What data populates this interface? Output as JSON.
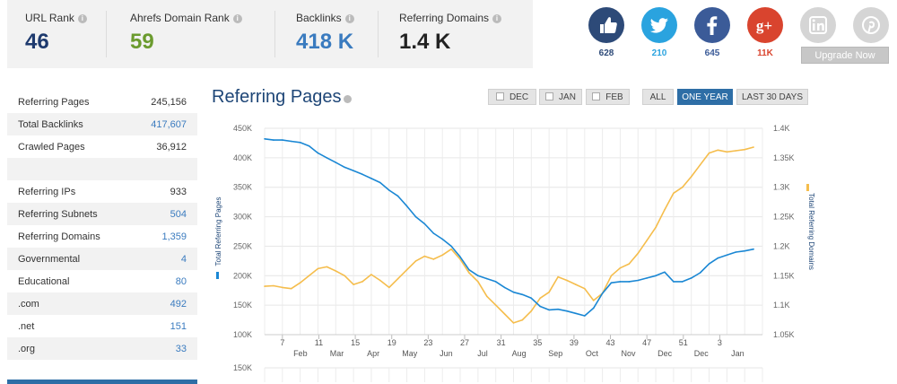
{
  "metrics": [
    {
      "label": "URL Rank",
      "value": "46",
      "color": "#1e3a6e"
    },
    {
      "label": "Ahrefs Domain Rank",
      "value": "59",
      "color": "#6b9b2e"
    },
    {
      "label": "Backlinks",
      "value": "418 K",
      "color": "#3a7bbf"
    },
    {
      "label": "Referring Domains",
      "value": "1.4 K",
      "color": "#222222"
    }
  ],
  "social": [
    {
      "name": "thumbs-up-icon",
      "count": "628",
      "bg": "#2d4a78",
      "count_color": "#2d4a78"
    },
    {
      "name": "twitter-icon",
      "count": "210",
      "bg": "#2aa3df",
      "count_color": "#2aa3df"
    },
    {
      "name": "facebook-icon",
      "count": "645",
      "bg": "#3b5b98",
      "count_color": "#3b5b98"
    },
    {
      "name": "google-plus-icon",
      "count": "11K",
      "bg": "#d9442e",
      "count_color": "#d9442e"
    },
    {
      "name": "linkedin-icon",
      "count": "",
      "bg": "#d5d5d5",
      "count_color": "#999999"
    },
    {
      "name": "pinterest-icon",
      "count": "",
      "bg": "#d5d5d5",
      "count_color": "#999999"
    }
  ],
  "upgrade_label": "Upgrade Now",
  "stats": {
    "group1": [
      {
        "label": "Referring Pages",
        "value": "245,156",
        "link": false
      },
      {
        "label": "Total Backlinks",
        "value": "417,607",
        "link": true
      },
      {
        "label": "Crawled Pages",
        "value": "36,912",
        "link": false
      }
    ],
    "group2": [
      {
        "label": "Referring IPs",
        "value": "933",
        "link": false
      },
      {
        "label": "Referring Subnets",
        "value": "504",
        "link": true
      },
      {
        "label": "Referring Domains",
        "value": "1,359",
        "link": true
      },
      {
        "label": "Governmental",
        "value": "4",
        "link": true
      },
      {
        "label": "Educational",
        "value": "80",
        "link": true
      },
      {
        "label": ".com",
        "value": "492",
        "link": true
      },
      {
        "label": ".net",
        "value": "151",
        "link": true
      },
      {
        "label": ".org",
        "value": "33",
        "link": true
      }
    ]
  },
  "chart_title": "Referring Pages",
  "range_buttons": [
    {
      "label": "DEC",
      "checkbox": true,
      "active": false
    },
    {
      "label": "JAN",
      "checkbox": true,
      "active": false
    },
    {
      "label": "FEB",
      "checkbox": true,
      "active": false
    },
    {
      "label": "ALL",
      "checkbox": false,
      "active": false
    },
    {
      "label": "ONE YEAR",
      "checkbox": false,
      "active": true
    },
    {
      "label": "LAST 30 DAYS",
      "checkbox": false,
      "active": false
    }
  ],
  "chart_data": {
    "type": "line",
    "title": "Referring Pages",
    "ylabel": "Total Referring Pages",
    "y2label": "Total Referring Domains",
    "ylim": [
      100000,
      450000
    ],
    "y2lim": [
      1050,
      1400
    ],
    "y_ticks": [
      "450K",
      "400K",
      "350K",
      "300K",
      "250K",
      "200K",
      "150K",
      "100K"
    ],
    "y2_ticks": [
      "1.4K",
      "1.35K",
      "1.3K",
      "1.25K",
      "1.2K",
      "1.15K",
      "1.1K",
      "1.05K"
    ],
    "x_day_ticks": [
      "7",
      "11",
      "15",
      "19",
      "23",
      "27",
      "31",
      "35",
      "39",
      "43",
      "47",
      "51",
      "3"
    ],
    "x_month_ticks": [
      "Feb",
      "Mar",
      "Apr",
      "May",
      "Jun",
      "Jul",
      "Aug",
      "Sep",
      "Oct",
      "Nov",
      "Dec",
      "Dec",
      "Jan"
    ],
    "x_range": [
      0,
      56
    ],
    "navigator_tick": "150K",
    "grid": true,
    "legend": "axis-labels",
    "series": [
      {
        "name": "Total Referring Pages",
        "axis": "left",
        "color": "#1a87d4",
        "x": [
          0,
          1,
          2,
          3,
          4,
          5,
          6,
          7,
          8,
          9,
          10,
          11,
          12,
          13,
          14,
          15,
          16,
          17,
          18,
          19,
          20,
          21,
          22,
          23,
          24,
          25,
          26,
          27,
          28,
          29,
          30,
          31,
          32,
          33,
          34,
          35,
          36,
          37,
          38,
          39,
          40,
          41,
          42,
          43,
          44,
          45,
          46,
          47,
          48,
          49,
          50,
          51,
          52,
          53,
          54,
          55
        ],
        "values": [
          432000,
          430000,
          430000,
          428000,
          426000,
          420000,
          408000,
          400000,
          392000,
          384000,
          378000,
          372000,
          365000,
          358000,
          345000,
          335000,
          318000,
          300000,
          288000,
          272000,
          262000,
          250000,
          232000,
          210000,
          200000,
          195000,
          190000,
          180000,
          172000,
          168000,
          162000,
          148000,
          142000,
          143000,
          140000,
          136000,
          132000,
          145000,
          170000,
          188000,
          190000,
          190000,
          192000,
          196000,
          200000,
          206000,
          190000,
          190000,
          196000,
          205000,
          220000,
          230000,
          235000,
          240000,
          242000,
          245000
        ]
      },
      {
        "name": "Total Referring Domains",
        "axis": "right",
        "color": "#f5bd4c",
        "x": [
          0,
          1,
          2,
          3,
          4,
          5,
          6,
          7,
          8,
          9,
          10,
          11,
          12,
          13,
          14,
          15,
          16,
          17,
          18,
          19,
          20,
          21,
          22,
          23,
          24,
          25,
          26,
          27,
          28,
          29,
          30,
          31,
          32,
          33,
          34,
          35,
          36,
          37,
          38,
          39,
          40,
          41,
          42,
          43,
          44,
          45,
          46,
          47,
          48,
          49,
          50,
          51,
          52,
          53,
          54,
          55
        ],
        "values": [
          1132,
          1133,
          1130,
          1128,
          1138,
          1150,
          1162,
          1165,
          1158,
          1150,
          1135,
          1140,
          1152,
          1142,
          1130,
          1145,
          1160,
          1175,
          1183,
          1178,
          1185,
          1195,
          1178,
          1155,
          1140,
          1115,
          1100,
          1085,
          1070,
          1075,
          1090,
          1112,
          1122,
          1148,
          1142,
          1135,
          1128,
          1108,
          1120,
          1150,
          1163,
          1170,
          1188,
          1210,
          1232,
          1262,
          1290,
          1300,
          1318,
          1338,
          1358,
          1363,
          1360,
          1362,
          1364,
          1368
        ]
      }
    ]
  }
}
